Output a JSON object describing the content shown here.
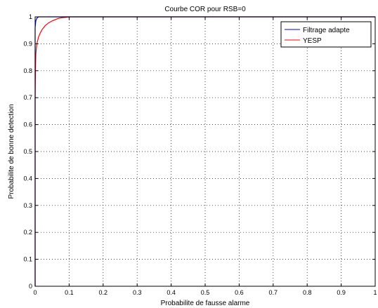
{
  "chart_data": {
    "type": "line",
    "title": "Courbe COR pour RSB=0",
    "xlabel": "Probabilite de fausse alarme",
    "ylabel": "Probabilite de bonne detection",
    "xlim": [
      0,
      1
    ],
    "ylim": [
      0,
      1
    ],
    "x_ticks": [
      "0",
      "0.1",
      "0.2",
      "0.3",
      "0.4",
      "0.5",
      "0.6",
      "0.7",
      "0.8",
      "0.9",
      "1"
    ],
    "y_ticks": [
      "0",
      "0.1",
      "0.2",
      "0.3",
      "0.4",
      "0.5",
      "0.6",
      "0.7",
      "0.8",
      "0.9",
      "1"
    ],
    "grid": true,
    "legend_position": "top-right",
    "series": [
      {
        "name": "Filtrage adapte",
        "color": "#0000ff",
        "x": [
          0,
          0,
          0.002,
          0.005,
          0.01,
          0.02,
          0.05,
          0.1,
          1
        ],
        "y": [
          0,
          0.96,
          0.985,
          0.995,
          1,
          1,
          1,
          1,
          1
        ]
      },
      {
        "name": "YESP",
        "color": "#ff0000",
        "x": [
          0,
          0,
          0.001,
          0.002,
          0.004,
          0.006,
          0.008,
          0.01,
          0.015,
          0.02,
          0.025,
          0.03,
          0.04,
          0.05,
          0.06,
          0.07,
          0.08,
          0.09,
          0.1,
          1
        ],
        "y": [
          0,
          0.7,
          0.8,
          0.86,
          0.89,
          0.905,
          0.915,
          0.925,
          0.94,
          0.952,
          0.96,
          0.968,
          0.978,
          0.985,
          0.99,
          0.995,
          0.997,
          0.998,
          1,
          1
        ]
      }
    ]
  }
}
